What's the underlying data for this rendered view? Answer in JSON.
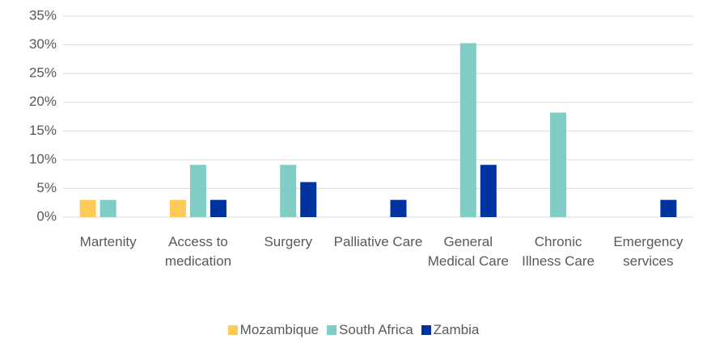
{
  "chart_data": {
    "type": "bar",
    "categories": [
      "Martenity",
      "Access to medication",
      "Surgery",
      "Palliative Care",
      "General Medical Care",
      "Chronic Illness Care",
      "Emergency services"
    ],
    "series": [
      {
        "name": "Mozambique",
        "color": "#fdc957",
        "values": [
          3,
          3,
          0,
          0,
          0,
          0,
          0
        ]
      },
      {
        "name": "South Africa",
        "color": "#7fcdc4",
        "values": [
          3,
          9.1,
          9.1,
          0,
          30.3,
          18.2,
          0
        ]
      },
      {
        "name": "Zambia",
        "color": "#0033a0",
        "values": [
          0,
          3,
          6.1,
          3,
          9.1,
          0,
          3
        ]
      }
    ],
    "ylim": [
      0,
      35
    ],
    "yticks": [
      {
        "value": 0,
        "label": "0%"
      },
      {
        "value": 5,
        "label": "5%"
      },
      {
        "value": 10,
        "label": "10%"
      },
      {
        "value": 15,
        "label": "15%"
      },
      {
        "value": 20,
        "label": "20%"
      },
      {
        "value": 25,
        "label": "25%"
      },
      {
        "value": 30,
        "label": "30%"
      },
      {
        "value": 35,
        "label": "35%"
      }
    ],
    "grid": true,
    "legend": "bottom"
  }
}
